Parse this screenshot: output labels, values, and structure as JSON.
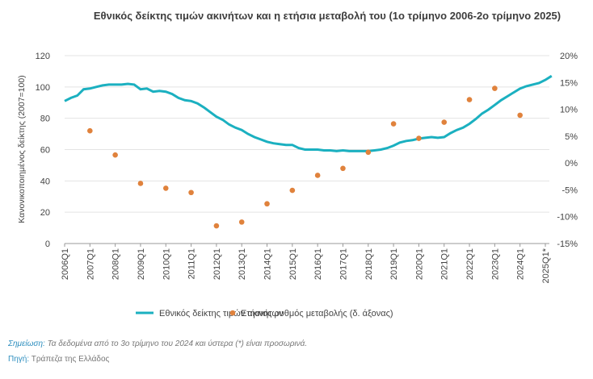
{
  "chart_data": {
    "type": "line",
    "title": "Εθνικός δείκτης τιμών ακινήτων και η ετήσια μεταβολή του (1ο τρίμηνο 2006-2ο τρίμηνο 2025)",
    "y_label": "Κανονικοποιημένος δείκτης (2007=100)",
    "categories": [
      "2006Q1",
      null,
      null,
      null,
      "2007Q1",
      null,
      null,
      null,
      "2008Q1",
      null,
      null,
      null,
      "2009Q1",
      null,
      null,
      null,
      "2010Q1",
      null,
      null,
      null,
      "2011Q1",
      null,
      null,
      null,
      "2012Q1",
      null,
      null,
      null,
      "2013Q1",
      null,
      null,
      null,
      "2014Q1",
      null,
      null,
      null,
      "2015Q1",
      null,
      null,
      null,
      "2016Q1",
      null,
      null,
      null,
      "2017Q1",
      null,
      null,
      null,
      "2018Q1",
      null,
      null,
      null,
      "2019Q1",
      null,
      null,
      null,
      "2020Q1",
      null,
      null,
      null,
      "2021Q1",
      null,
      null,
      null,
      "2022Q1",
      null,
      null,
      null,
      "2023Q1",
      null,
      null,
      null,
      "2024Q1",
      null,
      null,
      null,
      "2025Q1*",
      null
    ],
    "series": [
      {
        "name": "Εθνικός δείκτης τιμών ακινήτων",
        "color": "#1bb0c0",
        "type": "line",
        "values": [
          91,
          93,
          94.5,
          98.5,
          99,
          100,
          101,
          101.5,
          101.5,
          101.5,
          102,
          101.5,
          98.5,
          99,
          97,
          97.5,
          97,
          95.5,
          93,
          91.5,
          91,
          89.5,
          87,
          84,
          81,
          79,
          76,
          74,
          72.5,
          70,
          68,
          66.5,
          65,
          64,
          63.5,
          63,
          63,
          61,
          60,
          60,
          60,
          59.5,
          59.5,
          59,
          59.5,
          59,
          59,
          59,
          59,
          59.5,
          60,
          61,
          62.5,
          64.5,
          65.5,
          66,
          67,
          67.5,
          68,
          67.5,
          68,
          70.5,
          72.5,
          74,
          76.5,
          79.5,
          83,
          85.5,
          88.5,
          91.5,
          94,
          96.5,
          99,
          100.5,
          101.5,
          102.5,
          104.5,
          107
        ]
      },
      {
        "name": "Ετήσιος ρυθμός μεταβολής (δ. άξονας)",
        "color": "#e0823c",
        "type": "scatter",
        "axis": "y2",
        "values": [
          null,
          null,
          null,
          null,
          6,
          null,
          null,
          null,
          1.5,
          null,
          null,
          null,
          -3.8,
          null,
          null,
          null,
          -4.7,
          null,
          null,
          null,
          -5.5,
          null,
          null,
          null,
          -11.7,
          null,
          null,
          null,
          -11,
          null,
          null,
          null,
          -7.6,
          null,
          null,
          null,
          -5.1,
          null,
          null,
          null,
          -2.3,
          null,
          null,
          null,
          -1,
          null,
          null,
          null,
          2,
          null,
          null,
          null,
          7.3,
          null,
          null,
          null,
          4.6,
          null,
          null,
          null,
          7.6,
          null,
          null,
          null,
          11.8,
          null,
          null,
          null,
          13.9,
          null,
          null,
          null,
          8.9,
          null,
          null,
          null,
          null,
          null
        ]
      }
    ],
    "ylim": [
      0,
      120
    ],
    "yticks": [
      0,
      20,
      40,
      60,
      80,
      100,
      120
    ],
    "y2lim": [
      -15,
      20
    ],
    "y2ticks": [
      {
        "value": -15,
        "label": "-15%"
      },
      {
        "value": -10,
        "label": "-10%"
      },
      {
        "value": -5,
        "label": "-5%"
      },
      {
        "value": 0,
        "label": "0%"
      },
      {
        "value": 5,
        "label": "5%"
      },
      {
        "value": 10,
        "label": "10%"
      },
      {
        "value": 15,
        "label": "15%"
      },
      {
        "value": 20,
        "label": "20%"
      }
    ],
    "grid": true
  },
  "notes": {
    "note_label": "Σημείωση:",
    "note_text": "Τα δεδομένα από το 3ο τρίμηνο του 2024 και ύστερα (*) είναι προσωρινά.",
    "source_label": "Πηγή:",
    "source_text": "Τράπεζα της Ελλάδος"
  }
}
